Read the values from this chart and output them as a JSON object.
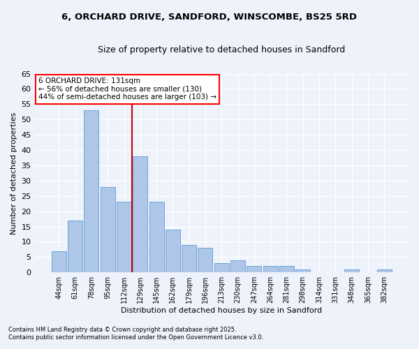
{
  "title": "6, ORCHARD DRIVE, SANDFORD, WINSCOMBE, BS25 5RD",
  "subtitle": "Size of property relative to detached houses in Sandford",
  "xlabel": "Distribution of detached houses by size in Sandford",
  "ylabel": "Number of detached properties",
  "footnote1": "Contains HM Land Registry data © Crown copyright and database right 2025.",
  "footnote2": "Contains public sector information licensed under the Open Government Licence v3.0.",
  "annotation_title": "6 ORCHARD DRIVE: 131sqm",
  "annotation_line1": "← 56% of detached houses are smaller (130)",
  "annotation_line2": "44% of semi-detached houses are larger (103) →",
  "bar_color": "#aec6e8",
  "bar_edge_color": "#5b9bd5",
  "background_color": "#eef2fb",
  "grid_color": "#ffffff",
  "vline_color": "#cc0000",
  "categories": [
    "44sqm",
    "61sqm",
    "78sqm",
    "95sqm",
    "112sqm",
    "129sqm",
    "145sqm",
    "162sqm",
    "179sqm",
    "196sqm",
    "213sqm",
    "230sqm",
    "247sqm",
    "264sqm",
    "281sqm",
    "298sqm",
    "314sqm",
    "331sqm",
    "348sqm",
    "365sqm",
    "382sqm"
  ],
  "values": [
    7,
    17,
    53,
    28,
    23,
    38,
    23,
    14,
    9,
    8,
    3,
    4,
    2,
    2,
    2,
    1,
    0,
    0,
    1,
    0,
    1
  ],
  "ylim": [
    0,
    65
  ],
  "yticks": [
    0,
    5,
    10,
    15,
    20,
    25,
    30,
    35,
    40,
    45,
    50,
    55,
    60,
    65
  ]
}
